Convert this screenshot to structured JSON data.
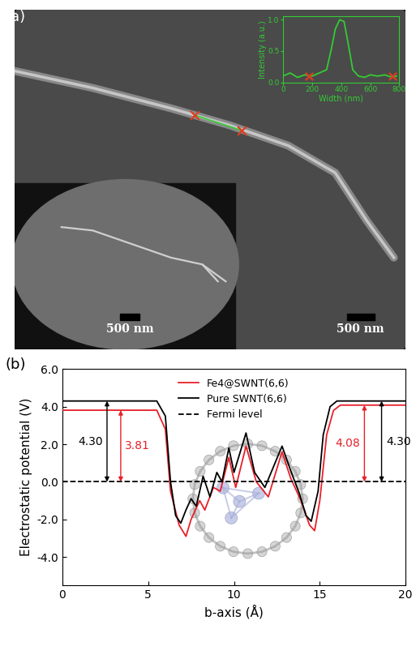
{
  "panel_a": {
    "label": "(a)",
    "scale_bar": "500 nm",
    "inset_scale_bar": "500 nm"
  },
  "chart_data": [
    {
      "type": "line",
      "xlabel": "Width (nm)",
      "ylabel": "Intensity (a.u.)",
      "xlim": [
        0,
        800
      ],
      "xticks": [
        0,
        200,
        400,
        600,
        800
      ],
      "ylim": [
        0,
        1.05
      ],
      "yticks": [
        {
          "value": 0,
          "label": "0.0"
        },
        {
          "value": 0.5,
          "label": "0.5"
        },
        {
          "value": 1.0,
          "label": "1.0"
        }
      ],
      "tick_labels": true,
      "color": "#33cc33",
      "series": [
        {
          "color": "#33cc33",
          "line_style": "solid",
          "x": [
            0,
            50,
            100,
            150,
            200,
            250,
            300,
            330,
            360,
            390,
            420,
            450,
            480,
            520,
            560,
            600,
            650,
            700,
            750,
            780
          ],
          "values": [
            0.1,
            0.15,
            0.08,
            0.12,
            0.1,
            0.15,
            0.2,
            0.5,
            0.85,
            1.0,
            0.97,
            0.6,
            0.2,
            0.1,
            0.08,
            0.12,
            0.1,
            0.12,
            0.08,
            0.1
          ]
        },
        {
          "type": "scatter",
          "color": "#e03c1e",
          "marker": "x",
          "x": [
            180,
            750
          ],
          "values": [
            0.1,
            0.1
          ]
        }
      ]
    },
    {
      "type": "line",
      "panel_label": "(b)",
      "xlabel": "b-axis (Å)",
      "ylabel": "Electrostatic potential (V)",
      "xlim": [
        0,
        20
      ],
      "xticks": [
        0,
        5,
        10,
        15,
        20
      ],
      "ylim": [
        -5.5,
        6.0
      ],
      "yticks": [
        {
          "value": -4,
          "label": "-4.0"
        },
        {
          "value": -2,
          "label": "-2.0"
        },
        {
          "value": 0,
          "label": "0.0"
        },
        {
          "value": 2,
          "label": "2.0"
        },
        {
          "value": 4,
          "label": "4.0"
        },
        {
          "value": 6,
          "label": "6.0"
        }
      ],
      "legend": "upper center",
      "series": [
        {
          "name": "Fe4@SWNT(6,6)",
          "color": "#e8202a",
          "line_style": "solid",
          "x": [
            0,
            5.5,
            6.0,
            6.3,
            6.8,
            7.2,
            7.5,
            8.0,
            8.3,
            8.8,
            9.2,
            9.7,
            10.1,
            10.7,
            11.3,
            12.0,
            12.8,
            13.3,
            13.9,
            14.4,
            14.7,
            15.0,
            15.4,
            15.8,
            16.2,
            20
          ],
          "values": [
            3.81,
            3.81,
            2.8,
            -0.5,
            -2.3,
            -2.9,
            -2.0,
            -1.0,
            -1.5,
            -0.3,
            -0.5,
            1.3,
            -0.3,
            1.9,
            0.0,
            -0.8,
            1.6,
            0.2,
            -1.0,
            -2.3,
            -2.6,
            -1.0,
            2.5,
            3.8,
            4.08,
            4.08
          ]
        },
        {
          "name": "Pure SWNT(6,6)",
          "color": "#000000",
          "line_style": "solid",
          "x": [
            0,
            5.5,
            6.0,
            6.3,
            6.6,
            6.9,
            7.2,
            7.5,
            7.8,
            8.2,
            8.6,
            9.0,
            9.3,
            9.7,
            10.0,
            10.7,
            11.2,
            11.8,
            12.8,
            13.3,
            13.8,
            14.2,
            14.5,
            14.9,
            15.2,
            15.6,
            16.0,
            20
          ],
          "values": [
            4.3,
            4.3,
            3.5,
            0.0,
            -1.8,
            -2.2,
            -1.5,
            -0.9,
            -1.3,
            0.3,
            -0.8,
            0.5,
            0.0,
            1.8,
            0.5,
            2.6,
            0.5,
            -0.3,
            1.9,
            0.6,
            -0.6,
            -1.8,
            -2.1,
            -0.5,
            2.5,
            4.0,
            4.3,
            4.3
          ]
        },
        {
          "name": "Fermi level",
          "color": "#000000",
          "line_style": "dashed",
          "x": [
            0,
            20
          ],
          "values": [
            0,
            0
          ]
        }
      ],
      "annotations": [
        {
          "text": "4.30",
          "value": 4.3,
          "color": "#000000"
        },
        {
          "text": "3.81",
          "value": 3.81,
          "color": "#e8202a"
        },
        {
          "text": "4.08",
          "value": 4.08,
          "color": "#e8202a"
        },
        {
          "text": "4.30",
          "value": 4.3,
          "color": "#000000"
        }
      ]
    }
  ]
}
